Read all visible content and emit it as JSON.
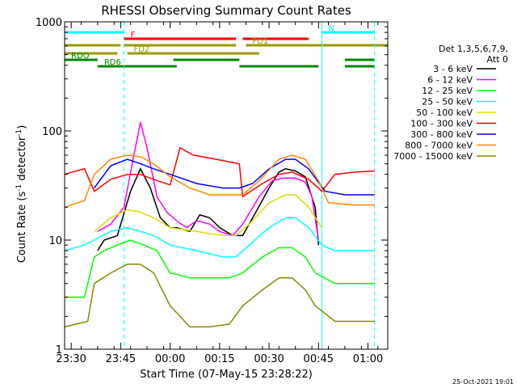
{
  "chart_data": {
    "type": "line",
    "title": "RHESSI Observing Summary Count Rates",
    "xlabel": "Start Time (07-May-15 23:28:22)",
    "ylabel_main": "Count Rate (s",
    "ylabel_sup1": "-1",
    "ylabel_mid": " detector",
    "ylabel_sup2": "-1",
    "ylabel_end": ")",
    "yscale": "log",
    "xlim": [
      "23:28",
      "01:06"
    ],
    "ylim": [
      1,
      1000
    ],
    "x_ticks": [
      "23:30",
      "23:45",
      "00:00",
      "00:15",
      "00:30",
      "00:45",
      "01:00"
    ],
    "y_ticks": [
      "1",
      "10",
      "100",
      "1000"
    ],
    "timestamp": "25-Oct-2021 19:01",
    "legend": {
      "header_line1": "Det 1,3,5,6,7,9,",
      "header_line2": "Att 0",
      "placement": "right"
    },
    "flags": [
      {
        "label": "N",
        "color": "#00ffff",
        "segments": [
          [
            "23:28",
            "23:46"
          ],
          [
            "00:46",
            "01:02"
          ]
        ]
      },
      {
        "label": "F",
        "color": "#ff0000",
        "segments": [
          [
            "23:46",
            "00:20"
          ],
          [
            "00:22",
            "00:42"
          ]
        ]
      },
      {
        "label": "FD1",
        "color": "#999900",
        "segments": [
          [
            "23:28",
            "23:45"
          ],
          [
            "23:46",
            "00:20"
          ],
          [
            "00:23",
            "01:06"
          ]
        ]
      },
      {
        "label": "FD2",
        "color": "#999900",
        "segments": [
          [
            "23:28",
            "23:44"
          ],
          [
            "23:47",
            "00:27"
          ]
        ]
      },
      {
        "label": "RDO",
        "color": "#008800",
        "segments": [
          [
            "23:28",
            "23:38"
          ],
          [
            "00:01",
            "00:21"
          ],
          [
            "00:53",
            "01:02"
          ]
        ]
      },
      {
        "label": "RD6",
        "color": "#008800",
        "segments": [
          [
            "23:38",
            "00:02"
          ],
          [
            "00:21",
            "00:45"
          ],
          [
            "00:53",
            "01:02"
          ]
        ]
      }
    ],
    "vlines": [
      {
        "time": "23:28",
        "style": "solid"
      },
      {
        "time": "23:46",
        "style": "dashed"
      },
      {
        "time": "00:46",
        "style": "solid"
      },
      {
        "time": "01:02",
        "style": "dashed"
      }
    ],
    "series": [
      {
        "name": "3 - 6 keV",
        "color": "#000000",
        "points": [
          [
            "23:38",
            8
          ],
          [
            "23:40",
            10
          ],
          [
            "23:44",
            11
          ],
          [
            "23:48",
            28
          ],
          [
            "23:51",
            45
          ],
          [
            "23:54",
            30
          ],
          [
            "23:57",
            16
          ],
          [
            "00:00",
            13
          ],
          [
            "00:02",
            13
          ],
          [
            "00:06",
            12
          ],
          [
            "00:09",
            17
          ],
          [
            "00:12",
            16
          ],
          [
            "00:15",
            13
          ],
          [
            "00:19",
            11
          ],
          [
            "00:22",
            11
          ],
          [
            "00:26",
            18
          ],
          [
            "00:30",
            30
          ],
          [
            "00:33",
            42
          ],
          [
            "00:35",
            45
          ],
          [
            "00:38",
            43
          ],
          [
            "00:41",
            38
          ],
          [
            "00:44",
            20
          ],
          [
            "00:45",
            9
          ]
        ]
      },
      {
        "name": "6 - 12 keV",
        "color": "#ff00ff",
        "points": [
          [
            "23:38",
            12
          ],
          [
            "23:42",
            14
          ],
          [
            "23:46",
            20
          ],
          [
            "23:49",
            60
          ],
          [
            "23:51",
            120
          ],
          [
            "23:53",
            70
          ],
          [
            "23:56",
            25
          ],
          [
            "23:59",
            18
          ],
          [
            "00:02",
            15
          ],
          [
            "00:05",
            13
          ],
          [
            "00:08",
            15
          ],
          [
            "00:12",
            14
          ],
          [
            "00:15",
            12
          ],
          [
            "00:19",
            11
          ],
          [
            "00:22",
            14
          ],
          [
            "00:27",
            25
          ],
          [
            "00:31",
            35
          ],
          [
            "00:34",
            37
          ],
          [
            "00:38",
            37
          ],
          [
            "00:41",
            34
          ],
          [
            "00:43",
            25
          ],
          [
            "00:45",
            10
          ]
        ]
      },
      {
        "name": "12 - 25 keV",
        "color": "#00ff00",
        "points": [
          [
            "23:28",
            3
          ],
          [
            "23:34",
            3
          ],
          [
            "23:37",
            7
          ],
          [
            "23:40",
            8
          ],
          [
            "23:44",
            9
          ],
          [
            "23:48",
            10
          ],
          [
            "23:52",
            9
          ],
          [
            "23:56",
            8
          ],
          [
            "00:00",
            5
          ],
          [
            "00:06",
            4.5
          ],
          [
            "00:12",
            4.5
          ],
          [
            "00:18",
            4.5
          ],
          [
            "00:22",
            5
          ],
          [
            "00:28",
            7
          ],
          [
            "00:33",
            8.5
          ],
          [
            "00:37",
            8.5
          ],
          [
            "00:41",
            7
          ],
          [
            "00:44",
            5
          ],
          [
            "00:50",
            4
          ],
          [
            "00:56",
            4
          ],
          [
            "01:02",
            4
          ]
        ]
      },
      {
        "name": "25 - 50 keV",
        "color": "#00ffff",
        "points": [
          [
            "23:28",
            8
          ],
          [
            "23:34",
            9
          ],
          [
            "23:37",
            10
          ],
          [
            "23:42",
            12
          ],
          [
            "23:47",
            13
          ],
          [
            "23:51",
            12
          ],
          [
            "23:55",
            11
          ],
          [
            "00:00",
            9
          ],
          [
            "00:08",
            8
          ],
          [
            "00:16",
            7
          ],
          [
            "00:20",
            7
          ],
          [
            "00:24",
            9
          ],
          [
            "00:30",
            13
          ],
          [
            "00:35",
            16
          ],
          [
            "00:38",
            16
          ],
          [
            "00:42",
            13
          ],
          [
            "00:46",
            9
          ],
          [
            "00:50",
            8
          ],
          [
            "00:56",
            8
          ],
          [
            "01:02",
            8
          ]
        ]
      },
      {
        "name": "50 - 100 keV",
        "color": "#dddd00",
        "points": [
          [
            "23:37",
            12
          ],
          [
            "23:42",
            16
          ],
          [
            "23:47",
            19
          ],
          [
            "23:51",
            18
          ],
          [
            "23:55",
            16
          ],
          [
            "00:00",
            13
          ],
          [
            "00:08",
            12
          ],
          [
            "00:16",
            11
          ],
          [
            "00:20",
            11
          ],
          [
            "00:24",
            14
          ],
          [
            "00:30",
            22
          ],
          [
            "00:35",
            26
          ],
          [
            "00:38",
            26
          ],
          [
            "00:42",
            20
          ],
          [
            "00:46",
            13
          ]
        ]
      },
      {
        "name": "100 - 300 keV",
        "color": "#ff0000",
        "points": [
          [
            "23:28",
            40
          ],
          [
            "23:34",
            45
          ],
          [
            "23:37",
            28
          ],
          [
            "23:42",
            36
          ],
          [
            "23:47",
            40
          ],
          [
            "23:51",
            40
          ],
          [
            "23:55",
            36
          ],
          [
            "00:00",
            32
          ],
          [
            "00:03",
            70
          ],
          [
            "00:07",
            60
          ],
          [
            "00:14",
            55
          ],
          [
            "00:21",
            50
          ],
          [
            "00:22",
            25
          ],
          [
            "00:28",
            33
          ],
          [
            "00:33",
            40
          ],
          [
            "00:37",
            42
          ],
          [
            "00:42",
            36
          ],
          [
            "00:46",
            28
          ],
          [
            "00:50",
            40
          ],
          [
            "00:56",
            42
          ],
          [
            "01:02",
            43
          ]
        ]
      },
      {
        "name": "300 - 800 keV",
        "color": "#0000ff",
        "points": [
          [
            "23:37",
            30
          ],
          [
            "23:42",
            48
          ],
          [
            "23:47",
            55
          ],
          [
            "23:51",
            50
          ],
          [
            "23:55",
            45
          ],
          [
            "00:00",
            40
          ],
          [
            "00:08",
            33
          ],
          [
            "00:16",
            30
          ],
          [
            "00:21",
            30
          ],
          [
            "00:25",
            33
          ],
          [
            "00:30",
            45
          ],
          [
            "00:35",
            55
          ],
          [
            "00:38",
            55
          ],
          [
            "00:42",
            45
          ],
          [
            "00:47",
            28
          ],
          [
            "00:53",
            26
          ],
          [
            "01:02",
            26
          ]
        ]
      },
      {
        "name": "800 - 7000 keV",
        "color": "#ff8800",
        "points": [
          [
            "23:28",
            20
          ],
          [
            "23:34",
            23
          ],
          [
            "23:37",
            40
          ],
          [
            "23:42",
            55
          ],
          [
            "23:47",
            60
          ],
          [
            "23:51",
            58
          ],
          [
            "23:55",
            50
          ],
          [
            "00:00",
            38
          ],
          [
            "00:06",
            30
          ],
          [
            "00:12",
            26
          ],
          [
            "00:18",
            26
          ],
          [
            "00:22",
            26
          ],
          [
            "00:27",
            35
          ],
          [
            "00:33",
            55
          ],
          [
            "00:37",
            60
          ],
          [
            "00:41",
            55
          ],
          [
            "00:45",
            35
          ],
          [
            "00:48",
            22
          ],
          [
            "00:55",
            21
          ],
          [
            "01:02",
            21
          ]
        ]
      },
      {
        "name": "7000 - 15000 keV",
        "color": "#888800",
        "points": [
          [
            "23:28",
            1.6
          ],
          [
            "23:35",
            1.8
          ],
          [
            "23:37",
            4
          ],
          [
            "23:42",
            5
          ],
          [
            "23:47",
            6
          ],
          [
            "23:51",
            6
          ],
          [
            "23:55",
            5
          ],
          [
            "00:00",
            2.5
          ],
          [
            "00:06",
            1.6
          ],
          [
            "00:12",
            1.6
          ],
          [
            "00:18",
            1.7
          ],
          [
            "00:22",
            2.5
          ],
          [
            "00:28",
            3.5
          ],
          [
            "00:33",
            4.5
          ],
          [
            "00:37",
            4.5
          ],
          [
            "00:41",
            3.5
          ],
          [
            "00:44",
            2.5
          ],
          [
            "00:50",
            1.8
          ],
          [
            "00:56",
            1.8
          ],
          [
            "01:02",
            1.8
          ]
        ]
      }
    ]
  }
}
